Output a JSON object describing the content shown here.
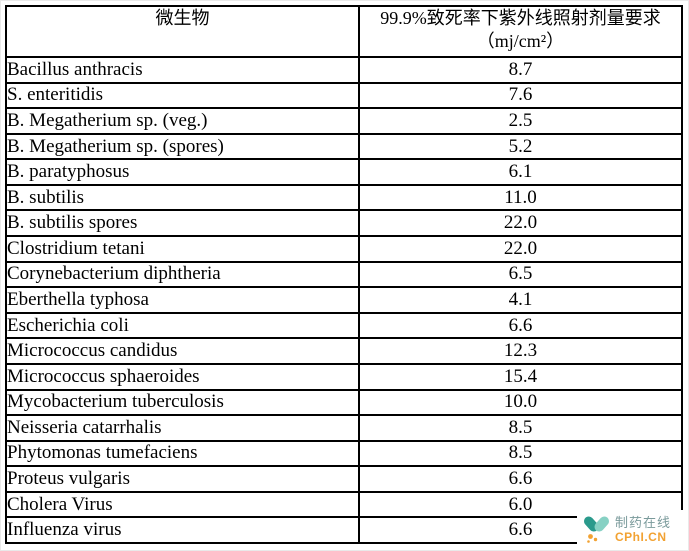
{
  "table": {
    "header_col1": "微生物",
    "header_col2_line1": "99.9%致死率下紫外线照射剂量要求",
    "header_col2_line2": "（mj/cm²）"
  },
  "chart_data": {
    "type": "table",
    "columns": [
      "微生物",
      "99.9%致死率下紫外线照射剂量要求（mj/cm²）"
    ],
    "rows": [
      [
        "Bacillus anthracis",
        "8.7"
      ],
      [
        "S. enteritidis",
        "7.6"
      ],
      [
        "B. Megatherium sp. (veg.)",
        "2.5"
      ],
      [
        "B. Megatherium sp. (spores)",
        "5.2"
      ],
      [
        "B. paratyphosus",
        "6.1"
      ],
      [
        "B. subtilis",
        "11.0"
      ],
      [
        "B. subtilis spores",
        "22.0"
      ],
      [
        "Clostridium tetani",
        "22.0"
      ],
      [
        "Corynebacterium diphtheria",
        "6.5"
      ],
      [
        "Eberthella typhosa",
        "4.1"
      ],
      [
        "Escherichia coli",
        "6.6"
      ],
      [
        "Micrococcus candidus",
        "12.3"
      ],
      [
        "Micrococcus sphaeroides",
        "15.4"
      ],
      [
        "Mycobacterium tuberculosis",
        "10.0"
      ],
      [
        "Neisseria catarrhalis",
        "8.5"
      ],
      [
        "Phytomonas tumefaciens",
        "8.5"
      ],
      [
        "Proteus vulgaris",
        "6.6"
      ],
      [
        "Cholera Virus",
        "6.0"
      ],
      [
        "Influenza virus",
        "6.6"
      ]
    ]
  },
  "watermark": {
    "brand_cn": "制药在线",
    "brand_en": "CPhI.CN",
    "colors": {
      "teal_dark": "#2a9a8c",
      "teal_light": "#87d1c4",
      "orange": "#f2a232",
      "text_gray": "#7a9a9b"
    }
  }
}
